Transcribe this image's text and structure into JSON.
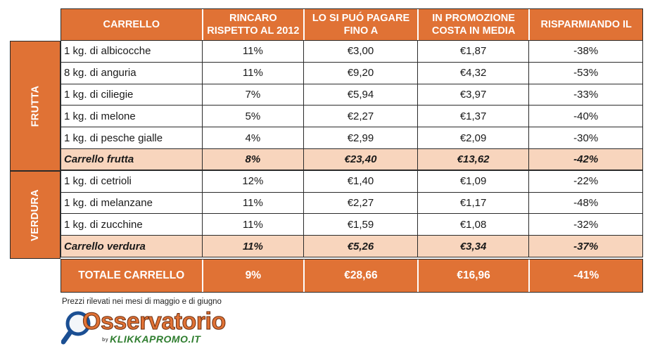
{
  "header": {
    "col1": "CARRELLO",
    "col2": "RINCARO RISPETTO AL 2012",
    "col3": "LO SI PUÓ PAGARE FINO A",
    "col4": "IN PROMOZIONE COSTA IN MEDIA",
    "col5": "RISPARMIANDO IL"
  },
  "groups": {
    "frutta": "FRUTTA",
    "verdura": "VERDURA"
  },
  "rows": [
    {
      "item": "1 kg. di albicocche",
      "rincaro": "11%",
      "max": "€3,00",
      "promo": "€1,87",
      "risp": "-38%"
    },
    {
      "item": "8 kg. di anguria",
      "rincaro": "11%",
      "max": "€9,20",
      "promo": "€4,32",
      "risp": "-53%"
    },
    {
      "item": "1 kg. di ciliegie",
      "rincaro": "7%",
      "max": "€5,94",
      "promo": "€3,97",
      "risp": "-33%"
    },
    {
      "item": "1 kg. di melone",
      "rincaro": "5%",
      "max": "€2,27",
      "promo": "€1,37",
      "risp": "-40%"
    },
    {
      "item": "1 kg. di pesche gialle",
      "rincaro": "4%",
      "max": "€2,99",
      "promo": "€2,09",
      "risp": "-30%"
    },
    {
      "item": "Carrello frutta",
      "rincaro": "8%",
      "max": "€23,40",
      "promo": "€13,62",
      "risp": "-42%"
    },
    {
      "item": "1 kg. di cetrioli",
      "rincaro": "12%",
      "max": "€1,40",
      "promo": "€1,09",
      "risp": "-22%"
    },
    {
      "item": "1 kg. di melanzane",
      "rincaro": "11%",
      "max": "€2,27",
      "promo": "€1,17",
      "risp": "-48%"
    },
    {
      "item": "1 kg. di zucchine",
      "rincaro": "11%",
      "max": "€1,59",
      "promo": "€1,08",
      "risp": "-32%"
    },
    {
      "item": "Carrello verdura",
      "rincaro": "11%",
      "max": "€5,26",
      "promo": "€3,34",
      "risp": "-37%"
    }
  ],
  "total": {
    "item": "TOTALE CARRELLO",
    "rincaro": "9%",
    "max": "€28,66",
    "promo": "€16,96",
    "risp": "-41%"
  },
  "note": "Prezzi rilevati nei mesi di maggio e di giugno",
  "logo": {
    "title": "Osservatorio",
    "sub_small": "by",
    "sub": "KLIKKAPROMO.IT"
  }
}
